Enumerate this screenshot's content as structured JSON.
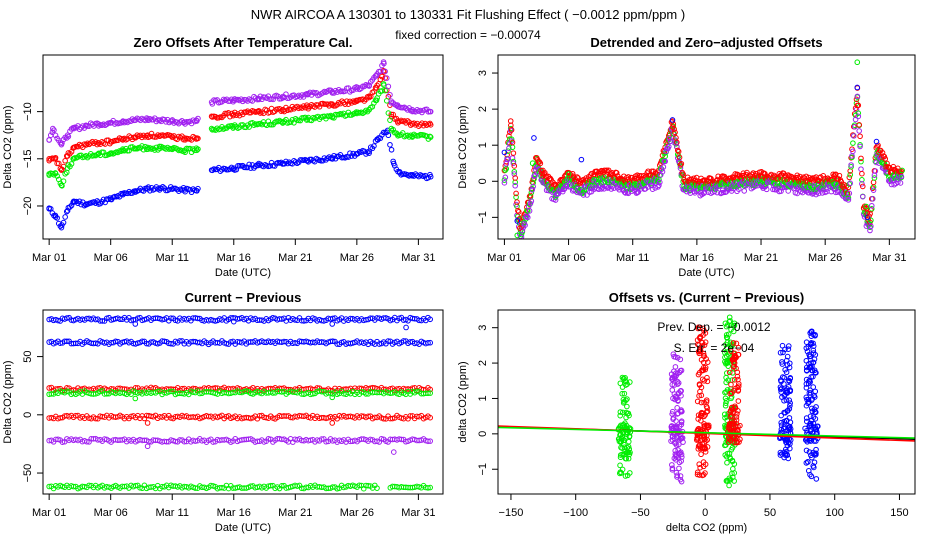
{
  "figure": {
    "main_title": "NWR   AIRCOA A   130301 to 130331   Fit Flushing Effect ( −0.0012 ppm/ppm )",
    "subtitle": "fixed correction = −0.00074"
  },
  "colors": {
    "blue": "#0000ff",
    "red": "#ff0000",
    "green": "#00ee00",
    "purple": "#a020f0",
    "black": "#000000"
  },
  "chart_data": [
    {
      "id": "p1",
      "type": "scatter",
      "title": "Zero Offsets After Temperature Cal.",
      "xlabel": "Date (UTC)",
      "ylabel": "Delta CO2 (ppm)",
      "xlim": [
        -0.5,
        32
      ],
      "ylim": [
        -23.5,
        -4
      ],
      "x_ticks": [
        0,
        5,
        10,
        15,
        20,
        25,
        30
      ],
      "x_tick_labels": [
        "Mar 01",
        "Mar 06",
        "Mar 11",
        "Mar 16",
        "Mar 21",
        "Mar 26",
        "Mar 31"
      ],
      "y_ticks": [
        -20,
        -15,
        -10
      ],
      "y_tick_labels": [
        "−20",
        "−15",
        "−10"
      ],
      "series": [
        {
          "name": "blue",
          "color": "blue",
          "points": [
            [
              0,
              -20.3
            ],
            [
              0.5,
              -21
            ],
            [
              1,
              -22.3
            ],
            [
              1.5,
              -20.5
            ],
            [
              2,
              -19.5
            ],
            [
              3,
              -19.8
            ],
            [
              4,
              -19.6
            ],
            [
              5,
              -19.3
            ],
            [
              6,
              -18.8
            ],
            [
              7,
              -18.4
            ],
            [
              8,
              -18.2
            ],
            [
              9,
              -18.1
            ],
            [
              10,
              -18.2
            ],
            [
              11,
              -18.3
            ],
            [
              12,
              -18.4
            ],
            [
              13.2,
              -16.2
            ],
            [
              15,
              -16
            ],
            [
              17,
              -15.7
            ],
            [
              19,
              -15.5
            ],
            [
              21,
              -15.2
            ],
            [
              23,
              -14.9
            ],
            [
              25,
              -14.5
            ],
            [
              26,
              -14.2
            ],
            [
              26.7,
              -13
            ],
            [
              27.5,
              -12
            ],
            [
              28,
              -15.5
            ],
            [
              28.5,
              -16.5
            ],
            [
              29.5,
              -16.8
            ],
            [
              31,
              -16.9
            ]
          ]
        },
        {
          "name": "red",
          "color": "red",
          "points": [
            [
              0,
              -15.2
            ],
            [
              0.5,
              -15
            ],
            [
              1,
              -16.2
            ],
            [
              1.5,
              -14.7
            ],
            [
              2,
              -13.8
            ],
            [
              3,
              -13.5
            ],
            [
              4,
              -13.3
            ],
            [
              5,
              -13.2
            ],
            [
              6,
              -12.9
            ],
            [
              7,
              -12.7
            ],
            [
              8,
              -12.5
            ],
            [
              9,
              -12.6
            ],
            [
              10,
              -12.7
            ],
            [
              11,
              -12.8
            ],
            [
              12,
              -12.8
            ],
            [
              13.2,
              -10.5
            ],
            [
              15,
              -10.3
            ],
            [
              17,
              -10
            ],
            [
              19,
              -9.8
            ],
            [
              21,
              -9.5
            ],
            [
              23,
              -9.2
            ],
            [
              25,
              -8.9
            ],
            [
              26,
              -8.5
            ],
            [
              26.6,
              -7.5
            ],
            [
              27.2,
              -5.8
            ],
            [
              27.8,
              -10.3
            ],
            [
              28.3,
              -11
            ],
            [
              29.5,
              -11.3
            ],
            [
              31,
              -11.4
            ]
          ]
        },
        {
          "name": "green",
          "color": "green",
          "points": [
            [
              0,
              -16.6
            ],
            [
              0.5,
              -16.5
            ],
            [
              1,
              -17.8
            ],
            [
              1.5,
              -16
            ],
            [
              2,
              -15
            ],
            [
              3,
              -14.7
            ],
            [
              4,
              -14.5
            ],
            [
              5,
              -14.4
            ],
            [
              6,
              -14.1
            ],
            [
              7,
              -13.9
            ],
            [
              8,
              -13.8
            ],
            [
              9,
              -13.9
            ],
            [
              10,
              -14
            ],
            [
              11,
              -14.1
            ],
            [
              12,
              -14.1
            ],
            [
              13.2,
              -11.8
            ],
            [
              15,
              -11.6
            ],
            [
              17,
              -11.3
            ],
            [
              19,
              -11.1
            ],
            [
              21,
              -10.8
            ],
            [
              23,
              -10.5
            ],
            [
              25,
              -10.2
            ],
            [
              26,
              -9.8
            ],
            [
              26.6,
              -8.8
            ],
            [
              27.2,
              -7.2
            ],
            [
              27.8,
              -11.8
            ],
            [
              28.3,
              -12.4
            ],
            [
              29.5,
              -12.6
            ],
            [
              31,
              -12.7
            ]
          ]
        },
        {
          "name": "purple",
          "color": "purple",
          "points": [
            [
              0,
              -13
            ],
            [
              0.3,
              -11.8
            ],
            [
              1,
              -13.5
            ],
            [
              1.5,
              -12.5
            ],
            [
              2,
              -11.8
            ],
            [
              3,
              -11.5
            ],
            [
              4,
              -11.3
            ],
            [
              5,
              -11.2
            ],
            [
              6,
              -11
            ],
            [
              7,
              -10.9
            ],
            [
              8,
              -10.8
            ],
            [
              9,
              -10.9
            ],
            [
              10,
              -11
            ],
            [
              11,
              -11.1
            ],
            [
              12,
              -11
            ],
            [
              13.2,
              -9
            ],
            [
              15,
              -8.8
            ],
            [
              17,
              -8.6
            ],
            [
              19,
              -8.4
            ],
            [
              21,
              -8.2
            ],
            [
              23,
              -7.9
            ],
            [
              25,
              -7.6
            ],
            [
              26,
              -7.2
            ],
            [
              26.6,
              -6.2
            ],
            [
              27.2,
              -4.9
            ],
            [
              27.8,
              -8.9
            ],
            [
              28.3,
              -9.3
            ],
            [
              29.5,
              -9.8
            ],
            [
              31,
              -10
            ]
          ]
        }
      ]
    },
    {
      "id": "p2",
      "type": "scatter",
      "title": "Detrended and Zero−adjusted Offsets",
      "xlabel": "Date (UTC)",
      "ylabel": "Delta CO2 (ppm)",
      "xlim": [
        -0.5,
        32
      ],
      "ylim": [
        -1.6,
        3.5
      ],
      "x_ticks": [
        0,
        5,
        10,
        15,
        20,
        25,
        30
      ],
      "x_tick_labels": [
        "Mar 01",
        "Mar 06",
        "Mar 11",
        "Mar 16",
        "Mar 21",
        "Mar 26",
        "Mar 31"
      ],
      "y_ticks": [
        -1,
        0,
        1,
        2,
        3
      ],
      "y_tick_labels": [
        "−1",
        "0",
        "1",
        "2",
        "3"
      ],
      "series": [
        {
          "name": "band",
          "color": "purple",
          "points": [
            [
              0,
              0.1
            ],
            [
              0.5,
              1.5
            ],
            [
              1,
              -0.8
            ],
            [
              1.3,
              -1.4
            ],
            [
              2,
              -0.5
            ],
            [
              2.5,
              0.6
            ],
            [
              3,
              0.1
            ],
            [
              4,
              -0.3
            ],
            [
              5,
              0.1
            ],
            [
              6,
              -0.2
            ],
            [
              7,
              0.05
            ],
            [
              8,
              0.1
            ],
            [
              10,
              -0.1
            ],
            [
              11,
              0.05
            ],
            [
              12,
              0.1
            ],
            [
              13.1,
              1.6
            ],
            [
              14,
              -0.1
            ],
            [
              16,
              -0.1
            ],
            [
              18,
              0
            ],
            [
              20,
              0.05
            ],
            [
              22,
              0
            ],
            [
              24,
              -0.1
            ],
            [
              26,
              0
            ],
            [
              26.8,
              -0.4
            ],
            [
              27.5,
              2.5
            ],
            [
              28,
              -0.8
            ],
            [
              28.5,
              -1.2
            ],
            [
              29,
              0.9
            ],
            [
              30,
              0.2
            ],
            [
              31,
              0.2
            ]
          ]
        },
        {
          "name": "blue",
          "color": "blue",
          "points": [
            [
              0,
              0.8
            ],
            [
              1,
              -1.1
            ],
            [
              2.3,
              1.2
            ],
            [
              6,
              0.6
            ],
            [
              13.1,
              1.7
            ],
            [
              27.5,
              2.6
            ],
            [
              28.3,
              -1
            ],
            [
              29,
              1.1
            ]
          ]
        },
        {
          "name": "red",
          "color": "red",
          "points": [
            [
              0.5,
              1.55
            ],
            [
              1.2,
              -1.3
            ],
            [
              3,
              0.3
            ],
            [
              13.1,
              1.5
            ],
            [
              20,
              0.15
            ],
            [
              27.5,
              2.1
            ],
            [
              28.5,
              -0.9
            ]
          ]
        },
        {
          "name": "green",
          "color": "green",
          "points": [
            [
              1,
              -1.5
            ],
            [
              2.2,
              0.5
            ],
            [
              5,
              0.2
            ],
            [
              27.5,
              3.3
            ],
            [
              28.2,
              -0.7
            ],
            [
              31,
              0.3
            ]
          ]
        }
      ]
    },
    {
      "id": "p3",
      "type": "scatter",
      "title": "Current − Previous",
      "xlabel": "Date (UTC)",
      "ylabel": "Delta CO2 (ppm)",
      "xlim": [
        -0.5,
        32
      ],
      "ylim": [
        -68,
        90
      ],
      "x_ticks": [
        0,
        5,
        10,
        15,
        20,
        25,
        30
      ],
      "x_tick_labels": [
        "Mar 01",
        "Mar 06",
        "Mar 11",
        "Mar 16",
        "Mar 21",
        "Mar 26",
        "Mar 31"
      ],
      "y_ticks": [
        -50,
        0,
        50
      ],
      "y_tick_labels": [
        "−50",
        "0",
        "50"
      ],
      "series": [
        {
          "name": "blue high",
          "color": "blue",
          "level": 82,
          "points": [
            [
              7,
              78
            ],
            [
              15,
              80
            ],
            [
              23,
              78
            ],
            [
              29,
              75
            ]
          ]
        },
        {
          "name": "blue low",
          "color": "blue",
          "level": 62,
          "points": []
        },
        {
          "name": "red high",
          "color": "red",
          "level": 22,
          "points": []
        },
        {
          "name": "green",
          "color": "green",
          "level": 19,
          "points": [
            [
              7,
              14
            ],
            [
              23,
              15
            ]
          ]
        },
        {
          "name": "red low",
          "color": "red",
          "level": -2,
          "points": [
            [
              8,
              -7
            ],
            [
              23,
              -7
            ]
          ]
        },
        {
          "name": "purple",
          "color": "purple",
          "level": -22,
          "points": [
            [
              8,
              -27
            ],
            [
              28,
              -32
            ]
          ]
        },
        {
          "name": "green low",
          "color": "green",
          "level": -62,
          "points": []
        }
      ]
    },
    {
      "id": "p4",
      "type": "scatter",
      "title": "Offsets vs. (Current − Previous)",
      "xlabel": "delta CO2 (ppm)",
      "ylabel": "delta CO2 (ppm)",
      "xlim": [
        -160,
        162
      ],
      "ylim": [
        -1.7,
        3.5
      ],
      "x_ticks": [
        -150,
        -100,
        -50,
        0,
        50,
        100,
        150
      ],
      "x_tick_labels": [
        "−150",
        "−100",
        "−50",
        "0",
        "50",
        "100",
        "150"
      ],
      "y_ticks": [
        -1,
        0,
        1,
        2,
        3
      ],
      "y_tick_labels": [
        "−1",
        "0",
        "1",
        "2",
        "3"
      ],
      "annotations": {
        "prev_dep": "Prev. Dep. =  −0.0012",
        "s_err": "S. Err. =  2e−04"
      },
      "fit_lines": [
        {
          "color": "black",
          "x": [
            -160,
            162
          ],
          "y": [
            0.2,
            -0.15
          ]
        },
        {
          "color": "red",
          "x": [
            -160,
            162
          ],
          "y": [
            0.22,
            -0.2
          ]
        },
        {
          "color": "green",
          "x": [
            -160,
            162
          ],
          "y": [
            0.18,
            -0.12
          ]
        }
      ],
      "series": [
        {
          "name": "green",
          "color": "green",
          "clusters": [
            [
              -62,
              -1.2,
              1.6
            ],
            [
              19,
              -1.5,
              3.3
            ]
          ]
        },
        {
          "name": "purple",
          "color": "purple",
          "clusters": [
            [
              -22,
              -1.4,
              2.3
            ]
          ]
        },
        {
          "name": "red",
          "color": "red",
          "clusters": [
            [
              -2,
              -1.2,
              3.1
            ],
            [
              22,
              -0.3,
              2.6
            ]
          ]
        },
        {
          "name": "blue",
          "color": "blue",
          "clusters": [
            [
              62,
              -0.7,
              2.6
            ],
            [
              82,
              -1.3,
              2.9
            ]
          ]
        }
      ]
    }
  ]
}
